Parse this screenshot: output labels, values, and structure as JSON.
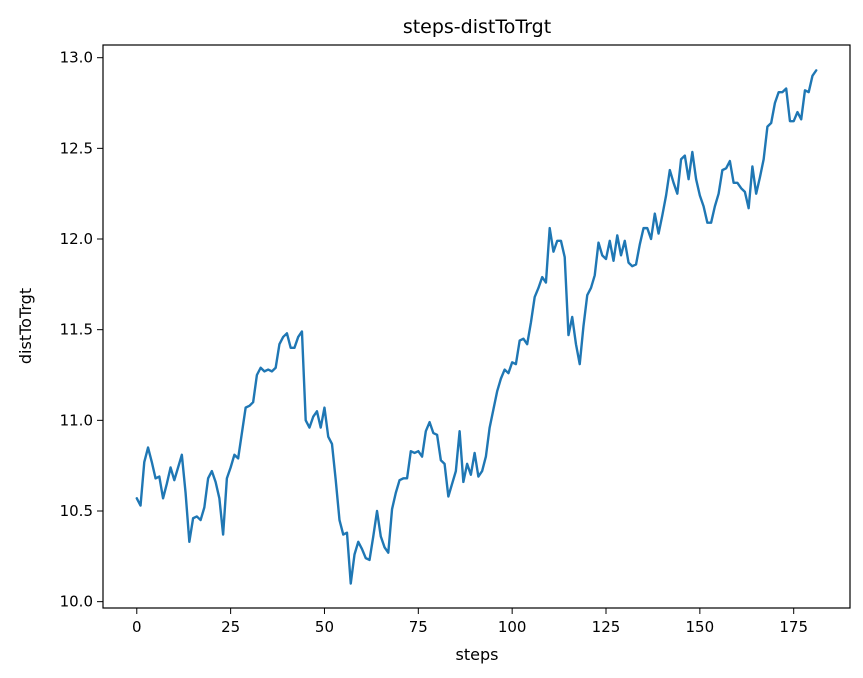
{
  "chart_data": {
    "type": "line",
    "title": "steps-distToTrgt",
    "xlabel": "steps",
    "ylabel": "distToTrgt",
    "xlim": [
      -9,
      190
    ],
    "ylim": [
      9.965,
      13.07
    ],
    "xticks": [
      0,
      25,
      50,
      75,
      100,
      125,
      150,
      175
    ],
    "yticks": [
      "10.0",
      "10.5",
      "11.0",
      "11.5",
      "12.0",
      "12.5",
      "13.0"
    ],
    "grid": false,
    "color": "#1f77b4",
    "series": [
      {
        "x": [
          0,
          1,
          2,
          3,
          4,
          5,
          6,
          7,
          8,
          9,
          10,
          11,
          12,
          13,
          14,
          15,
          16,
          17,
          18,
          19,
          20,
          21,
          22,
          23,
          24,
          25,
          26,
          27,
          28,
          29,
          30,
          31,
          32,
          33,
          34,
          35,
          36,
          37,
          38,
          39,
          40,
          41,
          42,
          43,
          44,
          45,
          46,
          47,
          48,
          49,
          50,
          51,
          52,
          53,
          54,
          55,
          56,
          57,
          58,
          59,
          60,
          61,
          62,
          63,
          64,
          65,
          66,
          67,
          68,
          69,
          70,
          71,
          72,
          73,
          74,
          75,
          76,
          77,
          78,
          79,
          80,
          81,
          82,
          83,
          84,
          85,
          86,
          87,
          88,
          89,
          90,
          91,
          92,
          93,
          94,
          95,
          96,
          97,
          98,
          99,
          100,
          101,
          102,
          103,
          104,
          105,
          106,
          107,
          108,
          109,
          110,
          111,
          112,
          113,
          114,
          115,
          116,
          117,
          118,
          119,
          120,
          121,
          122,
          123,
          124,
          125,
          126,
          127,
          128,
          129,
          130,
          131,
          132,
          133,
          134,
          135,
          136,
          137,
          138,
          139,
          140,
          141,
          142,
          143,
          144,
          145,
          146,
          147,
          148,
          149,
          150,
          151,
          152,
          153,
          154,
          155,
          156,
          157,
          158,
          159,
          160,
          161,
          162,
          163,
          164,
          165,
          166,
          167,
          168,
          169,
          170,
          171,
          172,
          173,
          174,
          175,
          176,
          177,
          178,
          179,
          180,
          181
        ],
        "values": [
          10.57,
          10.53,
          10.77,
          10.85,
          10.77,
          10.68,
          10.69,
          10.57,
          10.65,
          10.74,
          10.67,
          10.74,
          10.81,
          10.6,
          10.33,
          10.46,
          10.47,
          10.45,
          10.52,
          10.68,
          10.72,
          10.66,
          10.57,
          10.37,
          10.68,
          10.74,
          10.81,
          10.79,
          10.93,
          11.07,
          11.08,
          11.1,
          11.25,
          11.29,
          11.27,
          11.28,
          11.27,
          11.29,
          11.42,
          11.46,
          11.48,
          11.4,
          11.4,
          11.46,
          11.49,
          11.0,
          10.96,
          11.02,
          11.05,
          10.96,
          11.07,
          10.91,
          10.87,
          10.67,
          10.45,
          10.37,
          10.38,
          10.1,
          10.26,
          10.33,
          10.29,
          10.24,
          10.23,
          10.36,
          10.5,
          10.36,
          10.3,
          10.27,
          10.51,
          10.6,
          10.67,
          10.68,
          10.68,
          10.83,
          10.82,
          10.83,
          10.8,
          10.94,
          10.99,
          10.93,
          10.92,
          10.78,
          10.76,
          10.58,
          10.65,
          10.72,
          10.94,
          10.66,
          10.76,
          10.7,
          10.82,
          10.69,
          10.72,
          10.8,
          10.96,
          11.06,
          11.16,
          11.23,
          11.28,
          11.26,
          11.32,
          11.31,
          11.44,
          11.45,
          11.42,
          11.54,
          11.68,
          11.73,
          11.79,
          11.76,
          12.06,
          11.93,
          11.99,
          11.99,
          11.9,
          11.47,
          11.57,
          11.42,
          11.31,
          11.52,
          11.69,
          11.73,
          11.8,
          11.98,
          11.91,
          11.89,
          11.99,
          11.88,
          12.02,
          11.91,
          11.99,
          11.87,
          11.85,
          11.86,
          11.97,
          12.06,
          12.06,
          12.0,
          12.14,
          12.03,
          12.13,
          12.24,
          12.38,
          12.31,
          12.25,
          12.44,
          12.46,
          12.33,
          12.48,
          12.33,
          12.24,
          12.18,
          12.09,
          12.09,
          12.18,
          12.25,
          12.38,
          12.39,
          12.43,
          12.31,
          12.31,
          12.28,
          12.26,
          12.17,
          12.4,
          12.25,
          12.34,
          12.44,
          12.62,
          12.64,
          12.75,
          12.81,
          12.81,
          12.83,
          12.65,
          12.65,
          12.7,
          12.66,
          12.82,
          12.81,
          12.9,
          12.93
        ]
      }
    ]
  }
}
